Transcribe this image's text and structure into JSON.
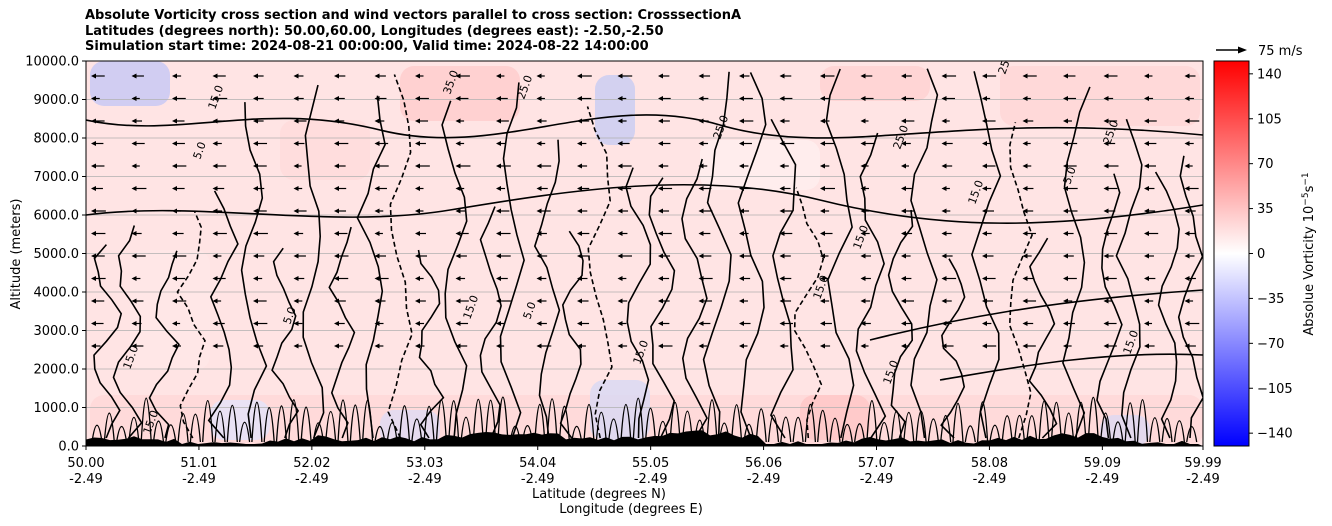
{
  "chart_data": {
    "type": "heatmap",
    "title_lines": [
      "Absolute Vorticity cross section and wind vectors parallel to cross section: CrosssectionA",
      "Latitudes (degrees north): 50.00,60.00, Longitudes (degrees east): -2.50,-2.50",
      "Simulation start time: 2024-08-21 00:00:00, Valid time: 2024-08-22 14:00:00"
    ],
    "ylabel": "Altitude (meters)",
    "xlabel_line1": "Latitude (degrees N)",
    "xlabel_line2": "Longitude (degrees E)",
    "ylim": [
      0,
      10000
    ],
    "xlim": [
      50.0,
      59.99
    ],
    "grid": true,
    "y_ticks": [
      "0.0",
      "1000.0",
      "2000.0",
      "3000.0",
      "4000.0",
      "5000.0",
      "6000.0",
      "7000.0",
      "8000.0",
      "9000.0",
      "10000.0"
    ],
    "y_tick_values": [
      0,
      1000,
      2000,
      3000,
      4000,
      5000,
      6000,
      7000,
      8000,
      9000,
      10000
    ],
    "x_ticks": [
      {
        "lat": "50.00",
        "lon": "-2.49",
        "value": 50.0
      },
      {
        "lat": "51.01",
        "lon": "-2.49",
        "value": 51.01
      },
      {
        "lat": "52.02",
        "lon": "-2.49",
        "value": 52.02
      },
      {
        "lat": "53.03",
        "lon": "-2.49",
        "value": 53.03
      },
      {
        "lat": "54.04",
        "lon": "-2.49",
        "value": 54.04
      },
      {
        "lat": "55.05",
        "lon": "-2.49",
        "value": 55.05
      },
      {
        "lat": "56.06",
        "lon": "-2.49",
        "value": 56.06
      },
      {
        "lat": "57.07",
        "lon": "-2.49",
        "value": 57.07
      },
      {
        "lat": "58.08",
        "lon": "-2.49",
        "value": 58.08
      },
      {
        "lat": "59.09",
        "lon": "-2.49",
        "value": 59.09
      },
      {
        "lat": "59.99",
        "lon": "-2.49",
        "value": 59.99
      }
    ],
    "colorbar": {
      "label": "Absolue Vorticity 10",
      "label_exp": "−5",
      "label_unit": "s",
      "label_unit_exp": "−1",
      "range": [
        -150,
        150
      ],
      "colormap": "bwr",
      "tick_labels": [
        "140",
        "105",
        "70",
        "35",
        "0",
        "−35",
        "−70",
        "−105",
        "−140"
      ],
      "tick_values": [
        140,
        105,
        70,
        35,
        0,
        -35,
        -70,
        -105,
        -140
      ]
    },
    "quiver_key": {
      "label": "75 m/s"
    },
    "contour_labels": [
      "5.0",
      "15.0",
      "25.0",
      "35.0"
    ],
    "colors": {
      "positive": "#ff0000",
      "negative": "#0000ff",
      "neutral": "#ffffff",
      "terrain": "#000000"
    }
  }
}
